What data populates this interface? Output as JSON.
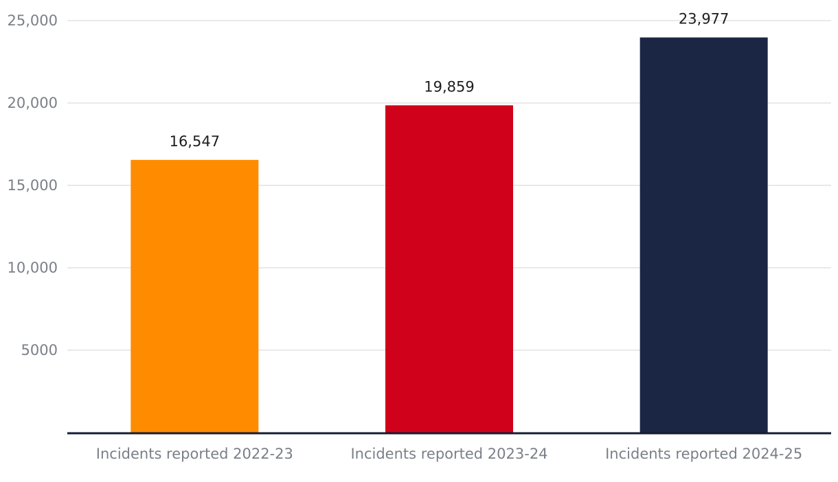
{
  "chart_data": {
    "type": "bar",
    "title": "",
    "xlabel": "",
    "ylabel": "",
    "categories": [
      "Incidents reported 2022-23",
      "Incidents reported 2023-24",
      "Incidents reported 2024-25"
    ],
    "values": [
      16547,
      19859,
      23977
    ],
    "value_labels": [
      "16,547",
      "19,859",
      "23,977"
    ],
    "bar_colors": [
      "#ff8c00",
      "#d0021b",
      "#1b2645"
    ],
    "ylim": [
      0,
      25000
    ],
    "yticks": [
      5000,
      10000,
      15000,
      20000,
      25000
    ],
    "ytick_labels": [
      "5000",
      "10,000",
      "15,000",
      "20,000",
      "25,000"
    ],
    "grid": true,
    "legend": "none",
    "baseline_color": "#141d33"
  }
}
